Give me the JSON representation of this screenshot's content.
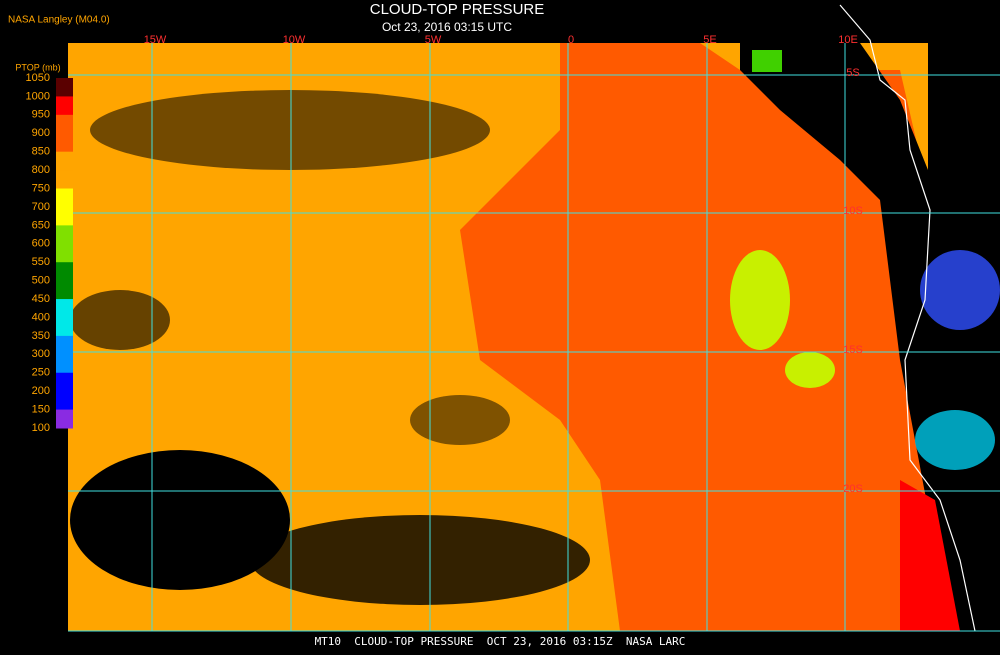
{
  "header": {
    "source": "NASA Langley (M04.0)",
    "title": "CLOUD-TOP PRESSURE",
    "subtitle": "Oct 23, 2016 03:15 UTC"
  },
  "legend": {
    "title": "PTOP (mb)",
    "ticks": [
      1050,
      1000,
      950,
      900,
      850,
      800,
      750,
      700,
      650,
      600,
      550,
      500,
      450,
      400,
      350,
      300,
      250,
      200,
      150,
      100
    ],
    "colors": [
      "#5a0000",
      "#ff0000",
      "#ff5a00",
      "#ff5a00",
      "#ffa500",
      "#ffa500",
      "#ffff00",
      "#ffff00",
      "#80e000",
      "#80e000",
      "#008a00",
      "#008a00",
      "#00e8e8",
      "#00e8e8",
      "#0090ff",
      "#0090ff",
      "#0000ff",
      "#0000ff",
      "#8a2be2"
    ]
  },
  "map": {
    "lon_labels": [
      "15W",
      "10W",
      "5W",
      "0",
      "5E",
      "10E"
    ],
    "lat_labels": [
      "5S",
      "10S",
      "15S",
      "20S"
    ]
  },
  "footer": {
    "text": "MT10  CLOUD-TOP PRESSURE  OCT 23, 2016 03:15Z  NASA LARC"
  }
}
